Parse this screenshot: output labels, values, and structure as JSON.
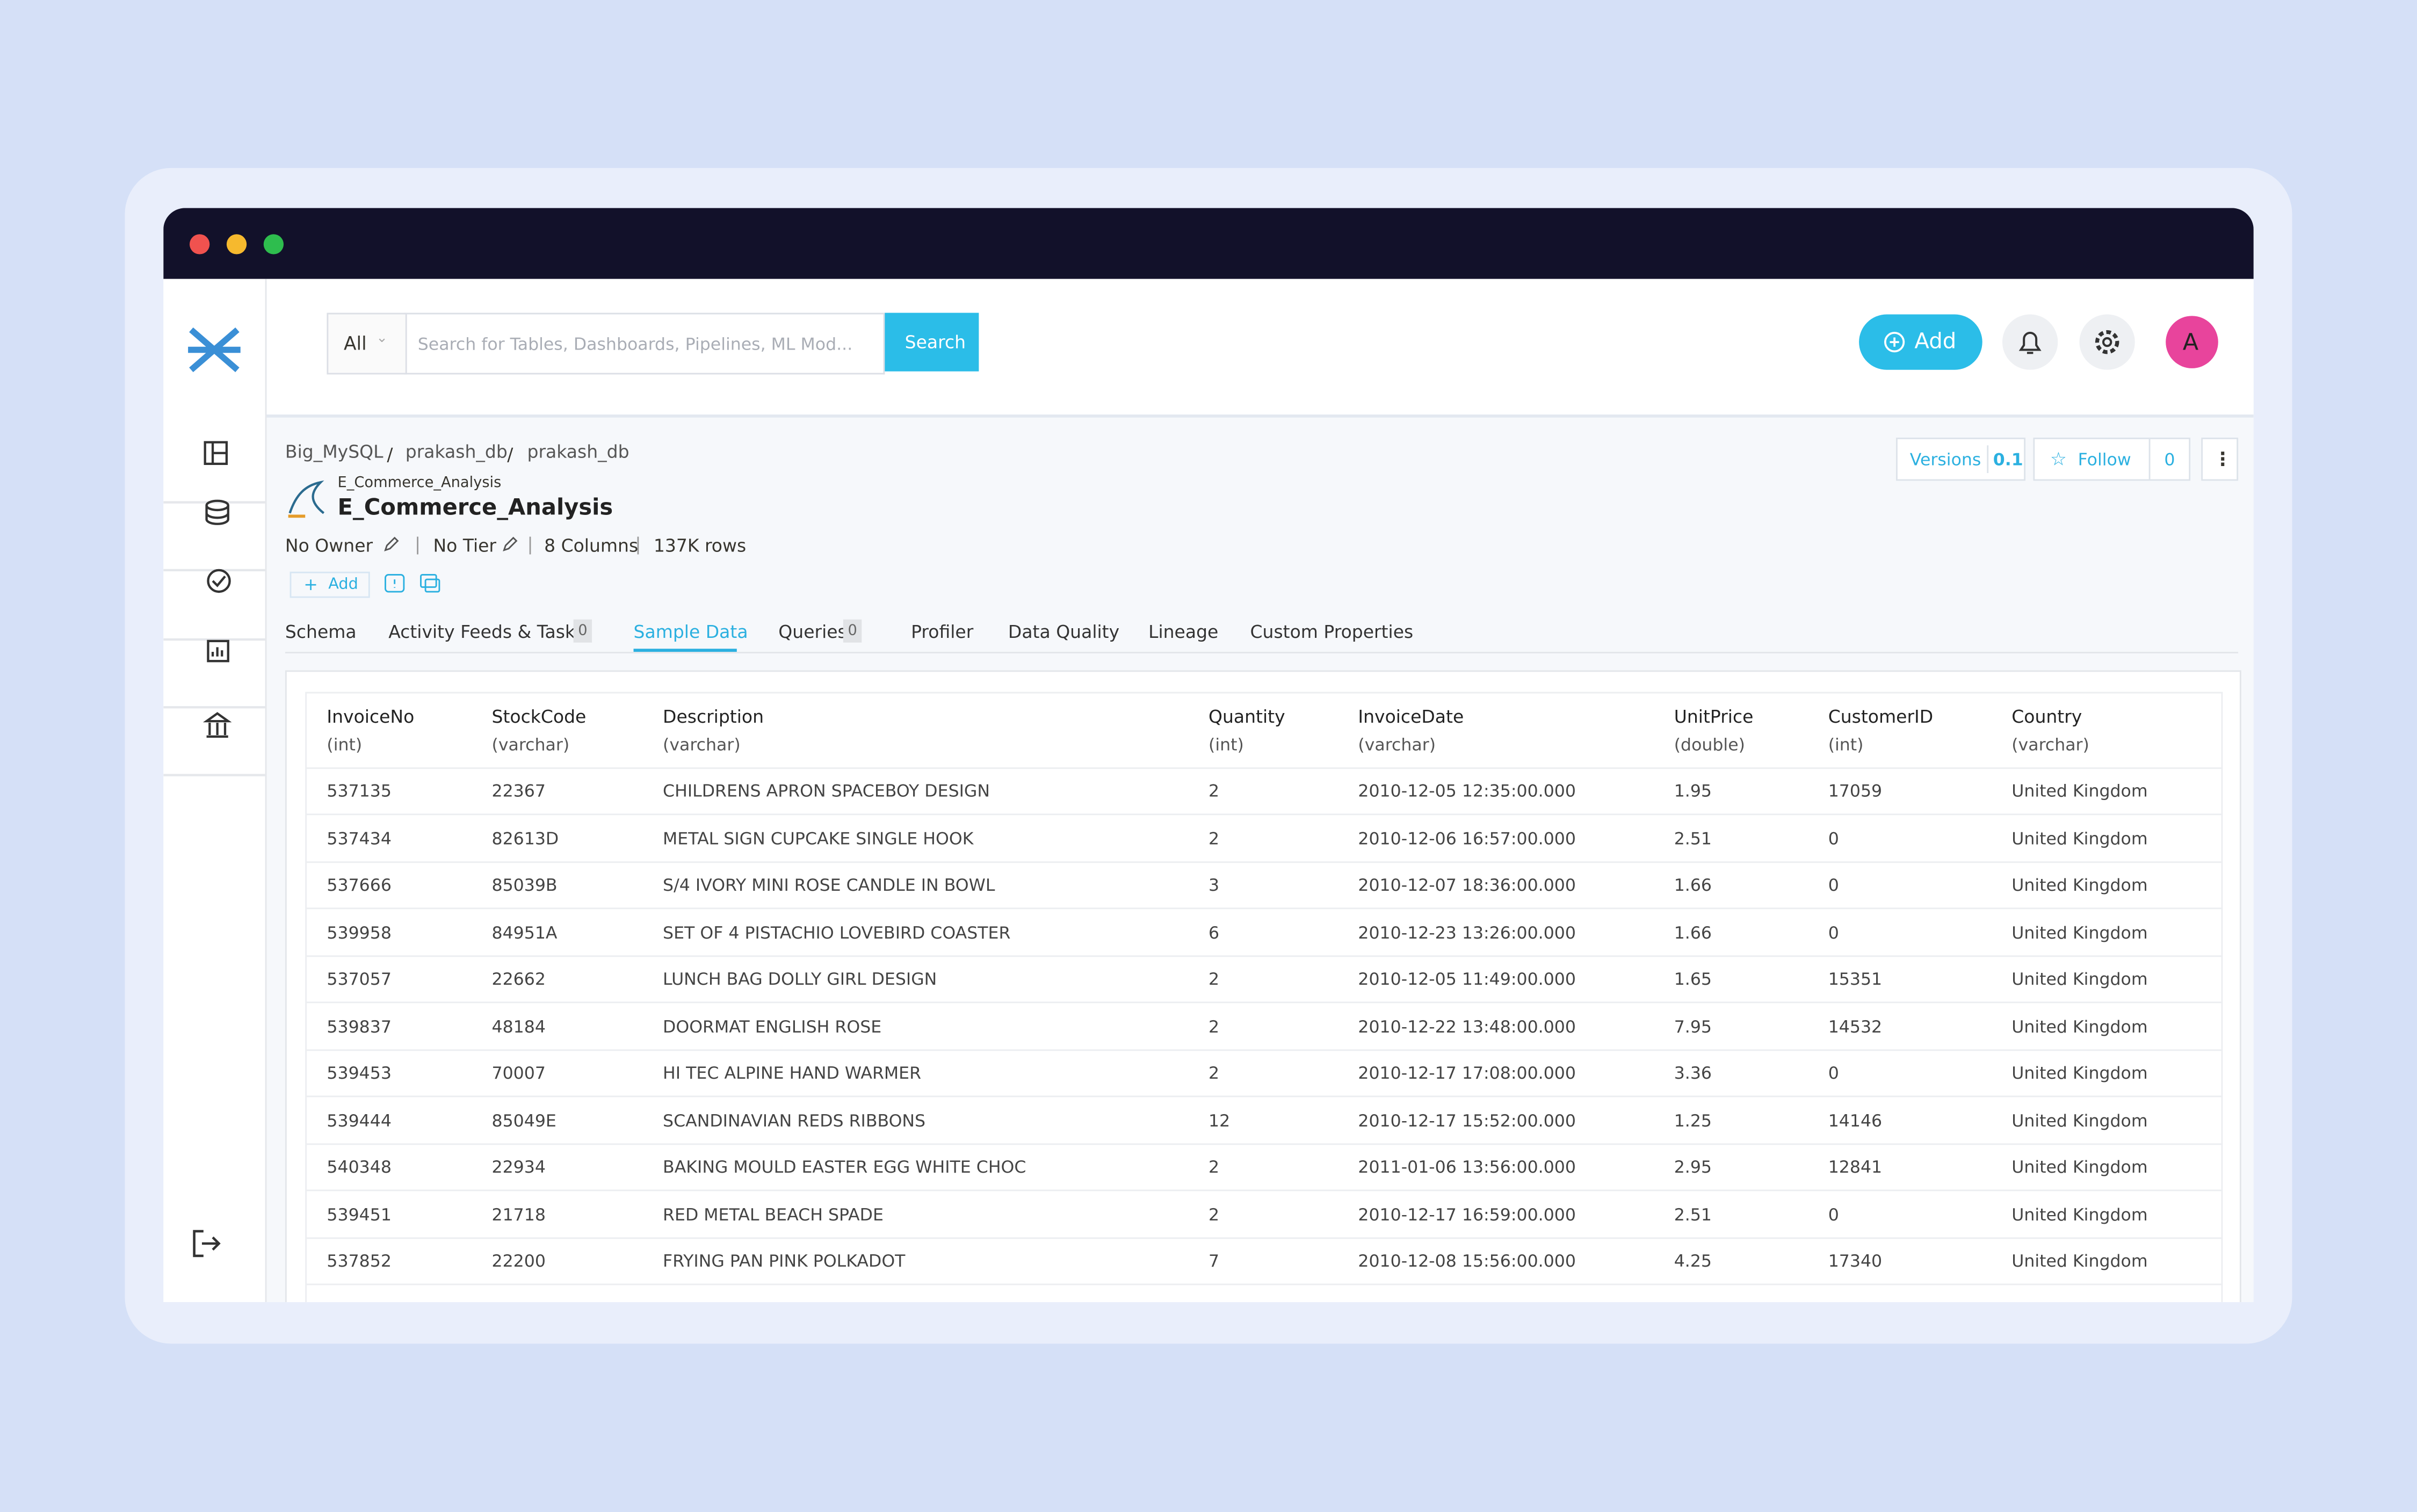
{
  "search": {
    "scope": "All",
    "placeholder": "Search for Tables, Dashboards, Pipelines, ML Mod...",
    "button": "Search"
  },
  "header_actions": {
    "add": "Add",
    "avatar": "A"
  },
  "breadcrumb": [
    "Big_MySQL",
    "prakash_db",
    "prakash_db"
  ],
  "entity": {
    "service_label": "E_Commerce_Analysis",
    "name": "E_Commerce_Analysis",
    "owner": "No Owner",
    "tier": "No Tier",
    "columns": "8 Columns",
    "rows": "137K rows",
    "add_tag": "Add"
  },
  "actions": {
    "versions": "Versions",
    "version": "0.1",
    "follow": "Follow",
    "followers": "0"
  },
  "tabs": [
    {
      "label": "Schema"
    },
    {
      "label": "Activity Feeds & Tasks",
      "count": "0"
    },
    {
      "label": "Sample Data"
    },
    {
      "label": "Queries",
      "count": "0"
    },
    {
      "label": "Profiler"
    },
    {
      "label": "Data Quality"
    },
    {
      "label": "Lineage"
    },
    {
      "label": "Custom Properties"
    }
  ],
  "active_tab": 2,
  "table": {
    "columns": [
      {
        "name": "InvoiceNo",
        "type": "(int)"
      },
      {
        "name": "StockCode",
        "type": "(varchar)"
      },
      {
        "name": "Description",
        "type": "(varchar)"
      },
      {
        "name": "Quantity",
        "type": "(int)"
      },
      {
        "name": "InvoiceDate",
        "type": "(varchar)"
      },
      {
        "name": "UnitPrice",
        "type": "(double)"
      },
      {
        "name": "CustomerID",
        "type": "(int)"
      },
      {
        "name": "Country",
        "type": "(varchar)"
      }
    ],
    "rows": [
      [
        "537135",
        "22367",
        "CHILDRENS APRON SPACEBOY DESIGN",
        "2",
        "2010-12-05 12:35:00.000",
        "1.95",
        "17059",
        "United Kingdom"
      ],
      [
        "537434",
        "82613D",
        "METAL SIGN CUPCAKE SINGLE HOOK",
        "2",
        "2010-12-06 16:57:00.000",
        "2.51",
        "0",
        "United Kingdom"
      ],
      [
        "537666",
        "85039B",
        "S/4 IVORY MINI ROSE CANDLE IN BOWL",
        "3",
        "2010-12-07 18:36:00.000",
        "1.66",
        "0",
        "United Kingdom"
      ],
      [
        "539958",
        "84951A",
        "SET OF 4 PISTACHIO LOVEBIRD COASTER",
        "6",
        "2010-12-23 13:26:00.000",
        "1.66",
        "0",
        "United Kingdom"
      ],
      [
        "537057",
        "22662",
        "LUNCH BAG DOLLY GIRL DESIGN",
        "2",
        "2010-12-05 11:49:00.000",
        "1.65",
        "15351",
        "United Kingdom"
      ],
      [
        "539837",
        "48184",
        "DOORMAT ENGLISH ROSE",
        "2",
        "2010-12-22 13:48:00.000",
        "7.95",
        "14532",
        "United Kingdom"
      ],
      [
        "539453",
        "70007",
        "HI TEC ALPINE HAND WARMER",
        "2",
        "2010-12-17 17:08:00.000",
        "3.36",
        "0",
        "United Kingdom"
      ],
      [
        "539444",
        "85049E",
        "SCANDINAVIAN REDS RIBBONS",
        "12",
        "2010-12-17 15:52:00.000",
        "1.25",
        "14146",
        "United Kingdom"
      ],
      [
        "540348",
        "22934",
        "BAKING MOULD EASTER EGG WHITE CHOC",
        "2",
        "2011-01-06 13:56:00.000",
        "2.95",
        "12841",
        "United Kingdom"
      ],
      [
        "539451",
        "21718",
        "RED METAL BEACH SPADE",
        "2",
        "2010-12-17 16:59:00.000",
        "2.51",
        "0",
        "United Kingdom"
      ],
      [
        "537852",
        "22200",
        "FRYING PAN PINK POLKADOT",
        "7",
        "2010-12-08 15:56:00.000",
        "4.25",
        "17340",
        "United Kingdom"
      ]
    ]
  }
}
